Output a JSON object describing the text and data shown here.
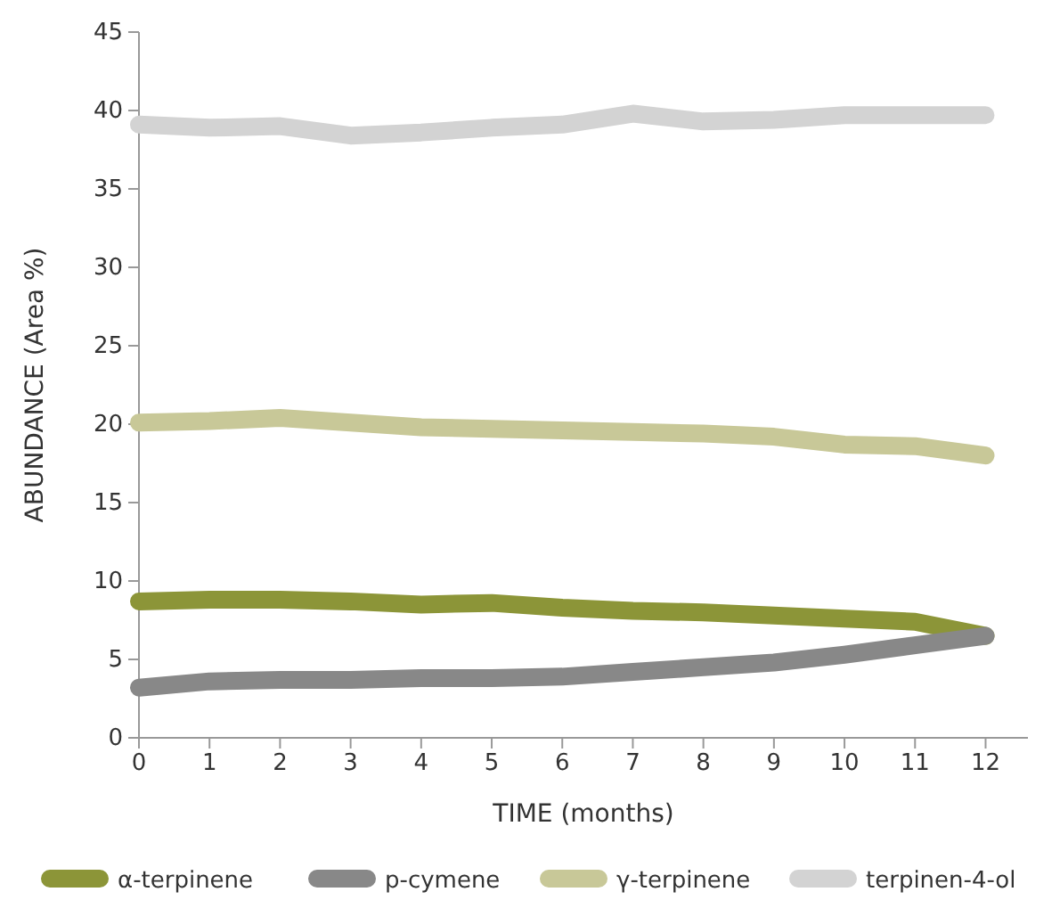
{
  "chart_data": {
    "type": "line",
    "xlabel": "TIME (months)",
    "ylabel": "ABUNDANCE (Area %)",
    "x": [
      0,
      1,
      2,
      3,
      4,
      5,
      6,
      7,
      8,
      9,
      10,
      11,
      12
    ],
    "xlim": [
      0,
      12.6
    ],
    "xticks": [
      0,
      1,
      2,
      3,
      4,
      5,
      6,
      7,
      8,
      9,
      10,
      11,
      12
    ],
    "ylim": [
      0,
      45
    ],
    "yticks": [
      0,
      5,
      10,
      15,
      20,
      25,
      30,
      35,
      40,
      45
    ],
    "grid": false,
    "legend": "bottom",
    "marker": "none",
    "line_style": "solid",
    "series": [
      {
        "name": "α-terpinene",
        "color": "#8c9538",
        "values": [
          8.7,
          8.8,
          8.8,
          8.7,
          8.5,
          8.6,
          8.3,
          8.1,
          8.0,
          7.8,
          7.6,
          7.4,
          6.5
        ]
      },
      {
        "name": "p-cymene",
        "color": "#888888",
        "values": [
          3.2,
          3.6,
          3.7,
          3.7,
          3.8,
          3.8,
          3.9,
          4.2,
          4.5,
          4.8,
          5.3,
          5.9,
          6.5
        ]
      },
      {
        "name": "γ-terpinene",
        "color": "#c8c898",
        "values": [
          20.1,
          20.2,
          20.4,
          20.1,
          19.8,
          19.7,
          19.6,
          19.5,
          19.4,
          19.2,
          18.7,
          18.6,
          18.0
        ]
      },
      {
        "name": "terpinen-4-ol",
        "color": "#d3d3d3",
        "values": [
          39.1,
          38.9,
          39.0,
          38.4,
          38.6,
          38.9,
          39.1,
          39.8,
          39.3,
          39.4,
          39.7,
          39.7,
          39.7
        ]
      }
    ]
  }
}
